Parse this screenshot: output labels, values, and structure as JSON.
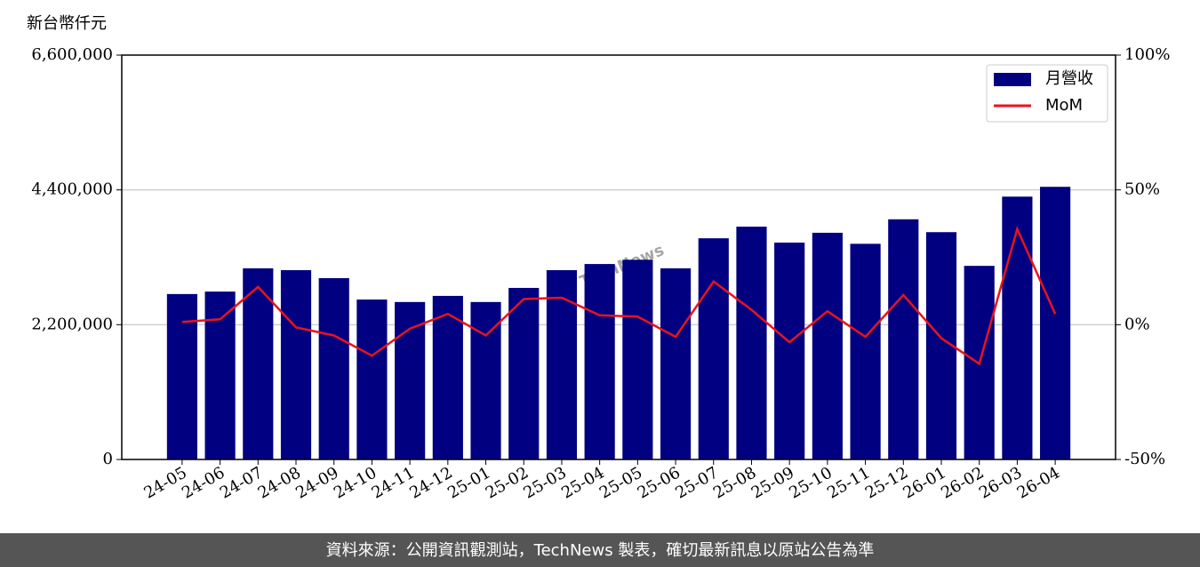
{
  "chart_data": {
    "type": "bar-line",
    "y_label": "新台幣仟元",
    "watermark": "TechNews",
    "footer": "資料來源：公開資訊觀測站，TechNews 製表，確切最新訊息以原站公告為準",
    "categories": [
      "24-05",
      "24-06",
      "24-07",
      "24-08",
      "24-09",
      "24-10",
      "24-11",
      "24-12",
      "25-01",
      "25-02",
      "25-03",
      "25-04",
      "25-05",
      "25-06",
      "25-07",
      "25-08",
      "25-09",
      "25-10",
      "25-11",
      "25-12",
      "26-01",
      "26-02",
      "26-03",
      "26-04"
    ],
    "series": [
      {
        "name": "月營收",
        "type": "bar",
        "color": "#000080",
        "values": [
          2700000,
          2740000,
          3120000,
          3090000,
          2960000,
          2610000,
          2570000,
          2670000,
          2570000,
          2800000,
          3090000,
          3190000,
          3260000,
          3120000,
          3610000,
          3800000,
          3540000,
          3700000,
          3520000,
          3920000,
          3710000,
          3160000,
          4290000,
          4450000
        ]
      },
      {
        "name": "MoM",
        "type": "line",
        "color": "#e8141c",
        "axis": "y2",
        "values": [
          1,
          2,
          14,
          -1,
          -4,
          -11.5,
          -1.5,
          4,
          -4,
          9.5,
          10,
          3.5,
          3,
          -4.5,
          16,
          5.5,
          -6.5,
          5,
          -4.5,
          11,
          -5,
          -14.5,
          35.5,
          4
        ]
      }
    ],
    "ylim": [
      0,
      6600000
    ],
    "yticks": [
      0,
      {
        "value": 2200000,
        "label": "2,200,000"
      },
      {
        "value": 4400000,
        "label": "4,400,000"
      },
      {
        "value": 6600000,
        "label": "6,600,000"
      }
    ],
    "y2lim": [
      -50,
      100
    ],
    "y2ticks": [
      {
        "value": -50,
        "label": "-50%"
      },
      {
        "value": 0,
        "label": "0%"
      },
      {
        "value": 50,
        "label": "50%"
      },
      {
        "value": 100,
        "label": "100%"
      }
    ],
    "grid": true,
    "legend": "upper right"
  }
}
